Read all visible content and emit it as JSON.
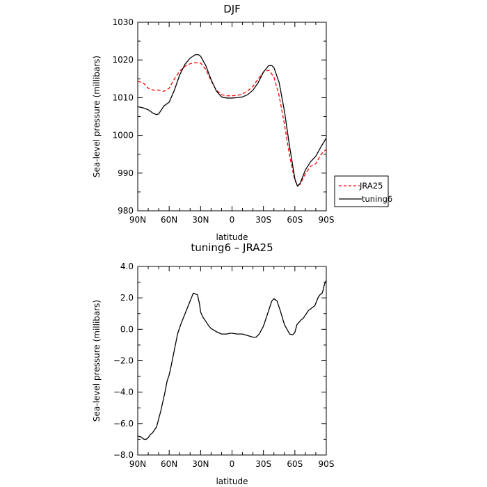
{
  "chart_data": [
    {
      "type": "line",
      "title": "DJF",
      "xlabel": "latitude",
      "ylabel": "Sea-level pressure (millibars)",
      "xlim": [
        90,
        -90
      ],
      "ylim": [
        980,
        1030
      ],
      "x_ticks": [
        90,
        60,
        30,
        0,
        -30,
        -60,
        -90
      ],
      "x_tick_labels": [
        "90N",
        "60N",
        "30N",
        "0",
        "30S",
        "60S",
        "90S"
      ],
      "y_ticks": [
        980,
        990,
        1000,
        1010,
        1020,
        1030
      ],
      "y_tick_labels": [
        "980",
        "990",
        "1000",
        "1010",
        "1020",
        "1030"
      ],
      "legend_position": "right",
      "series": [
        {
          "name": "JRA25",
          "color": "#ff0000",
          "dash": "dashed",
          "x": [
            90,
            85,
            80,
            75,
            70,
            65,
            60,
            55,
            50,
            45,
            40,
            35,
            30,
            25,
            20,
            15,
            10,
            5,
            0,
            -5,
            -10,
            -15,
            -20,
            -25,
            -30,
            -35,
            -40,
            -45,
            -50,
            -55,
            -60,
            -62.5,
            -65,
            -70,
            -75,
            -80,
            -85,
            -90
          ],
          "y": [
            1014.3,
            1014.0,
            1012.5,
            1012.0,
            1012.0,
            1011.7,
            1012.5,
            1015.0,
            1017.0,
            1018.3,
            1019.0,
            1019.3,
            1019.2,
            1017.5,
            1014.5,
            1012.0,
            1010.8,
            1010.5,
            1010.5,
            1010.6,
            1011.0,
            1011.8,
            1013.0,
            1015.0,
            1016.8,
            1017.3,
            1015.5,
            1010.5,
            1003.0,
            994.5,
            988.0,
            986.8,
            987.0,
            989.8,
            991.8,
            992.5,
            995.0,
            996.3
          ]
        },
        {
          "name": "tuning6",
          "color": "#000000",
          "dash": "solid",
          "x": [
            90,
            85,
            80,
            75,
            72,
            70,
            65,
            60,
            55,
            50,
            45,
            40,
            35,
            32,
            30,
            25,
            20,
            15,
            10,
            5,
            0,
            -5,
            -10,
            -15,
            -20,
            -25,
            -30,
            -35,
            -38,
            -40,
            -45,
            -50,
            -55,
            -60,
            -62.5,
            -65,
            -70,
            -75,
            -80,
            -85,
            -90
          ],
          "y": [
            1007.6,
            1007.3,
            1006.8,
            1005.8,
            1005.5,
            1005.7,
            1007.8,
            1008.8,
            1012.0,
            1016.0,
            1018.8,
            1020.5,
            1021.4,
            1021.4,
            1021.0,
            1018.5,
            1014.8,
            1011.8,
            1010.2,
            1009.9,
            1009.9,
            1010.0,
            1010.2,
            1010.8,
            1012.0,
            1014.0,
            1016.8,
            1018.5,
            1018.5,
            1018.0,
            1014.0,
            1006.5,
            997.0,
            988.5,
            986.5,
            987.3,
            990.8,
            993.0,
            994.5,
            997.0,
            999.3
          ]
        }
      ]
    },
    {
      "type": "line",
      "title": "tuning6 – JRA25",
      "xlabel": "latitude",
      "ylabel": "Sea-level pressure (millibars)",
      "xlim": [
        90,
        -90
      ],
      "ylim": [
        -8,
        4
      ],
      "x_ticks": [
        90,
        60,
        30,
        0,
        -30,
        -60,
        -90
      ],
      "x_tick_labels": [
        "90N",
        "60N",
        "30N",
        "0",
        "30S",
        "60S",
        "90S"
      ],
      "y_ticks": [
        -8,
        -6,
        -4,
        -2,
        0,
        2,
        4
      ],
      "y_tick_labels": [
        "−8.0",
        "−6.0",
        "−4.0",
        "−2.0",
        "0.0",
        "2.0",
        "4.0"
      ],
      "series": [
        {
          "name": "",
          "color": "#000000",
          "dash": "solid",
          "x": [
            90,
            87,
            84,
            82,
            80,
            78,
            76,
            74,
            72,
            70,
            68,
            66,
            64,
            62,
            60,
            58,
            55,
            52,
            49,
            46,
            43,
            40,
            37,
            35,
            33,
            31,
            30,
            28,
            26,
            24,
            22,
            20,
            15,
            10,
            5,
            2,
            0,
            -5,
            -10,
            -15,
            -20,
            -23,
            -26,
            -30,
            -35,
            -38,
            -40,
            -43,
            -46,
            -50,
            -55,
            -58,
            -60,
            -62,
            -64,
            -66,
            -68,
            -70,
            -73,
            -76,
            -79,
            -82,
            -84,
            -86,
            -87,
            -88,
            -89,
            -90
          ],
          "y": [
            -6.8,
            -6.85,
            -7.0,
            -7.0,
            -6.9,
            -6.7,
            -6.6,
            -6.4,
            -6.2,
            -5.7,
            -5.2,
            -4.6,
            -4.0,
            -3.3,
            -2.9,
            -2.3,
            -1.3,
            -0.3,
            0.3,
            0.8,
            1.3,
            1.8,
            2.3,
            2.25,
            2.2,
            1.6,
            1.1,
            0.8,
            0.6,
            0.4,
            0.2,
            0.05,
            -0.15,
            -0.3,
            -0.3,
            -0.25,
            -0.25,
            -0.3,
            -0.3,
            -0.4,
            -0.5,
            -0.5,
            -0.3,
            0.2,
            1.2,
            1.8,
            1.95,
            1.8,
            1.2,
            0.3,
            -0.3,
            -0.35,
            -0.2,
            0.3,
            0.45,
            0.6,
            0.7,
            0.9,
            1.2,
            1.35,
            1.5,
            2.0,
            2.2,
            2.3,
            2.5,
            2.8,
            3.0,
            3.1
          ]
        }
      ]
    }
  ]
}
